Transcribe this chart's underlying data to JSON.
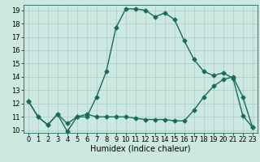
{
  "xlabel": "Humidex (Indice chaleur)",
  "background_color": "#cce8e0",
  "line_color": "#1a6b5a",
  "grid_color": "#aacccc",
  "xlim": [
    -0.5,
    23.5
  ],
  "ylim": [
    9.8,
    19.4
  ],
  "xticks": [
    0,
    1,
    2,
    3,
    4,
    5,
    6,
    7,
    8,
    9,
    10,
    11,
    12,
    13,
    14,
    15,
    16,
    17,
    18,
    19,
    20,
    21,
    22,
    23
  ],
  "yticks": [
    10,
    11,
    12,
    13,
    14,
    15,
    16,
    17,
    18,
    19
  ],
  "series1_x": [
    0,
    1,
    2,
    3,
    4,
    5,
    6,
    7,
    8,
    9,
    10,
    11,
    12,
    13,
    14,
    15,
    16,
    17,
    18,
    19,
    20,
    21,
    22,
    23
  ],
  "series1_y": [
    12.2,
    11.0,
    10.4,
    11.2,
    9.9,
    11.0,
    11.0,
    12.5,
    14.4,
    17.7,
    19.1,
    19.1,
    19.0,
    18.5,
    18.8,
    18.3,
    16.7,
    15.3,
    14.4,
    14.1,
    14.3,
    13.9,
    11.1,
    10.2
  ],
  "series2_x": [
    0,
    1,
    2,
    3,
    4,
    5,
    6,
    7,
    8,
    9,
    10,
    11,
    12,
    13,
    14,
    15,
    16,
    17,
    18,
    19,
    20,
    21,
    22,
    23
  ],
  "series2_y": [
    12.2,
    11.0,
    10.4,
    11.2,
    10.5,
    11.0,
    11.2,
    11.0,
    11.0,
    11.0,
    11.0,
    10.9,
    10.8,
    10.8,
    10.8,
    10.7,
    10.7,
    11.5,
    12.5,
    13.3,
    13.8,
    14.0,
    12.5,
    10.2
  ],
  "marker": "D",
  "markersize": 2.5,
  "linewidth": 1.0,
  "axis_fontsize": 7,
  "tick_fontsize": 6
}
